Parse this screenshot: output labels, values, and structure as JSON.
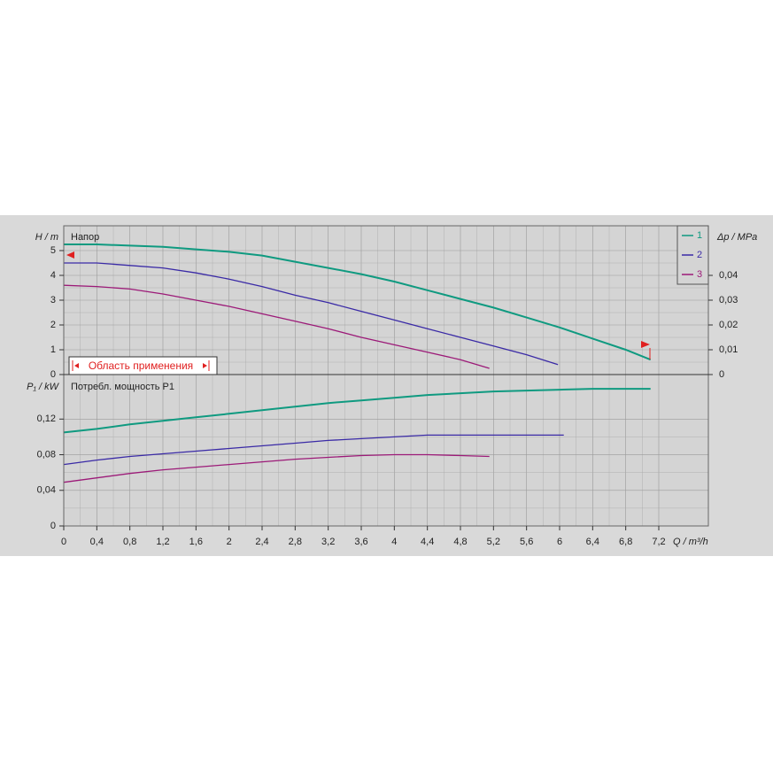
{
  "chart_data": [
    {
      "type": "line",
      "title": "Напор",
      "y_label": "H / m",
      "y2_label": "Δp / MPa",
      "annotation": "Область применения",
      "ylim": [
        0,
        6
      ],
      "yticks": [
        0,
        1,
        2,
        3,
        4,
        5
      ],
      "y2lim": [
        0,
        0.06
      ],
      "y2ticks": [
        0,
        {
          "value": 0.01,
          "label": "0,01"
        },
        {
          "value": 0.02,
          "label": "0,02"
        },
        {
          "value": 0.03,
          "label": "0,03"
        },
        {
          "value": 0.04,
          "label": "0,04"
        }
      ],
      "grid": true,
      "legend": "top-right",
      "series": [
        {
          "name": "1",
          "color": "#0f9a80",
          "x": [
            0,
            0.4,
            0.8,
            1.2,
            1.6,
            2,
            2.4,
            2.8,
            3.2,
            3.6,
            4,
            4.4,
            4.8,
            5.2,
            5.6,
            6,
            6.4,
            6.8,
            7.1
          ],
          "values": [
            5.25,
            5.25,
            5.2,
            5.15,
            5.05,
            4.95,
            4.8,
            4.55,
            4.3,
            4.05,
            3.75,
            3.4,
            3.05,
            2.7,
            2.3,
            1.9,
            1.45,
            1.0,
            0.6
          ]
        },
        {
          "name": "2",
          "color": "#3a2aa6",
          "x": [
            0,
            0.4,
            0.8,
            1.2,
            1.6,
            2,
            2.4,
            2.8,
            3.2,
            3.6,
            4,
            4.4,
            4.8,
            5.2,
            5.6,
            5.98
          ],
          "values": [
            4.5,
            4.5,
            4.4,
            4.3,
            4.1,
            3.85,
            3.55,
            3.2,
            2.9,
            2.55,
            2.2,
            1.85,
            1.5,
            1.15,
            0.8,
            0.4
          ]
        },
        {
          "name": "3",
          "color": "#9c1a78",
          "x": [
            0,
            0.4,
            0.8,
            1.2,
            1.6,
            2,
            2.4,
            2.8,
            3.2,
            3.6,
            4,
            4.4,
            4.8,
            5.15
          ],
          "values": [
            3.6,
            3.55,
            3.45,
            3.25,
            3.0,
            2.75,
            2.45,
            2.15,
            1.85,
            1.5,
            1.2,
            0.9,
            0.6,
            0.25
          ]
        }
      ]
    },
    {
      "type": "line",
      "title": "Потребл. мощность P1",
      "y_label": "P₁ / kW",
      "x_label": "Q / m³/h",
      "xlim": [
        0,
        7.8
      ],
      "xticks": [
        0,
        {
          "value": 0.4,
          "label": "0,4"
        },
        {
          "value": 0.8,
          "label": "0,8"
        },
        {
          "value": 1.2,
          "label": "1,2"
        },
        {
          "value": 1.6,
          "label": "1,6"
        },
        2,
        {
          "value": 2.4,
          "label": "2,4"
        },
        {
          "value": 2.8,
          "label": "2,8"
        },
        {
          "value": 3.2,
          "label": "3,2"
        },
        {
          "value": 3.6,
          "label": "3,6"
        },
        4,
        {
          "value": 4.4,
          "label": "4,4"
        },
        {
          "value": 4.8,
          "label": "4,8"
        },
        {
          "value": 5.2,
          "label": "5,2"
        },
        {
          "value": 5.6,
          "label": "5,6"
        },
        6,
        {
          "value": 6.4,
          "label": "6,4"
        },
        {
          "value": 6.8,
          "label": "6,8"
        },
        {
          "value": 7.2,
          "label": "7,2"
        }
      ],
      "ylim": [
        0,
        0.17
      ],
      "yticks": [
        0,
        {
          "value": 0.04,
          "label": "0,04"
        },
        {
          "value": 0.08,
          "label": "0,08"
        },
        {
          "value": 0.12,
          "label": "0,12"
        }
      ],
      "grid": true,
      "series": [
        {
          "color": "#0f9a80",
          "x": [
            0,
            0.4,
            0.8,
            1.2,
            1.6,
            2,
            2.4,
            2.8,
            3.2,
            3.6,
            4,
            4.4,
            4.8,
            5.2,
            5.6,
            6,
            6.4,
            7.1
          ],
          "values": [
            0.105,
            0.109,
            0.114,
            0.118,
            0.122,
            0.126,
            0.13,
            0.134,
            0.138,
            0.141,
            0.144,
            0.147,
            0.149,
            0.151,
            0.152,
            0.153,
            0.154,
            0.154
          ]
        },
        {
          "color": "#3a2aa6",
          "x": [
            0,
            0.4,
            0.8,
            1.2,
            1.6,
            2,
            2.4,
            2.8,
            3.2,
            3.6,
            4,
            4.4,
            4.8,
            5.2,
            5.6,
            6.05
          ],
          "values": [
            0.069,
            0.074,
            0.078,
            0.081,
            0.084,
            0.087,
            0.09,
            0.093,
            0.096,
            0.098,
            0.1,
            0.102,
            0.102,
            0.102,
            0.102,
            0.102
          ]
        },
        {
          "color": "#9c1a78",
          "x": [
            0,
            0.4,
            0.8,
            1.2,
            1.6,
            2,
            2.4,
            2.8,
            3.2,
            3.6,
            4,
            4.4,
            4.8,
            5.15
          ],
          "values": [
            0.049,
            0.054,
            0.059,
            0.063,
            0.066,
            0.069,
            0.072,
            0.075,
            0.077,
            0.079,
            0.08,
            0.08,
            0.079,
            0.078
          ]
        }
      ]
    }
  ]
}
